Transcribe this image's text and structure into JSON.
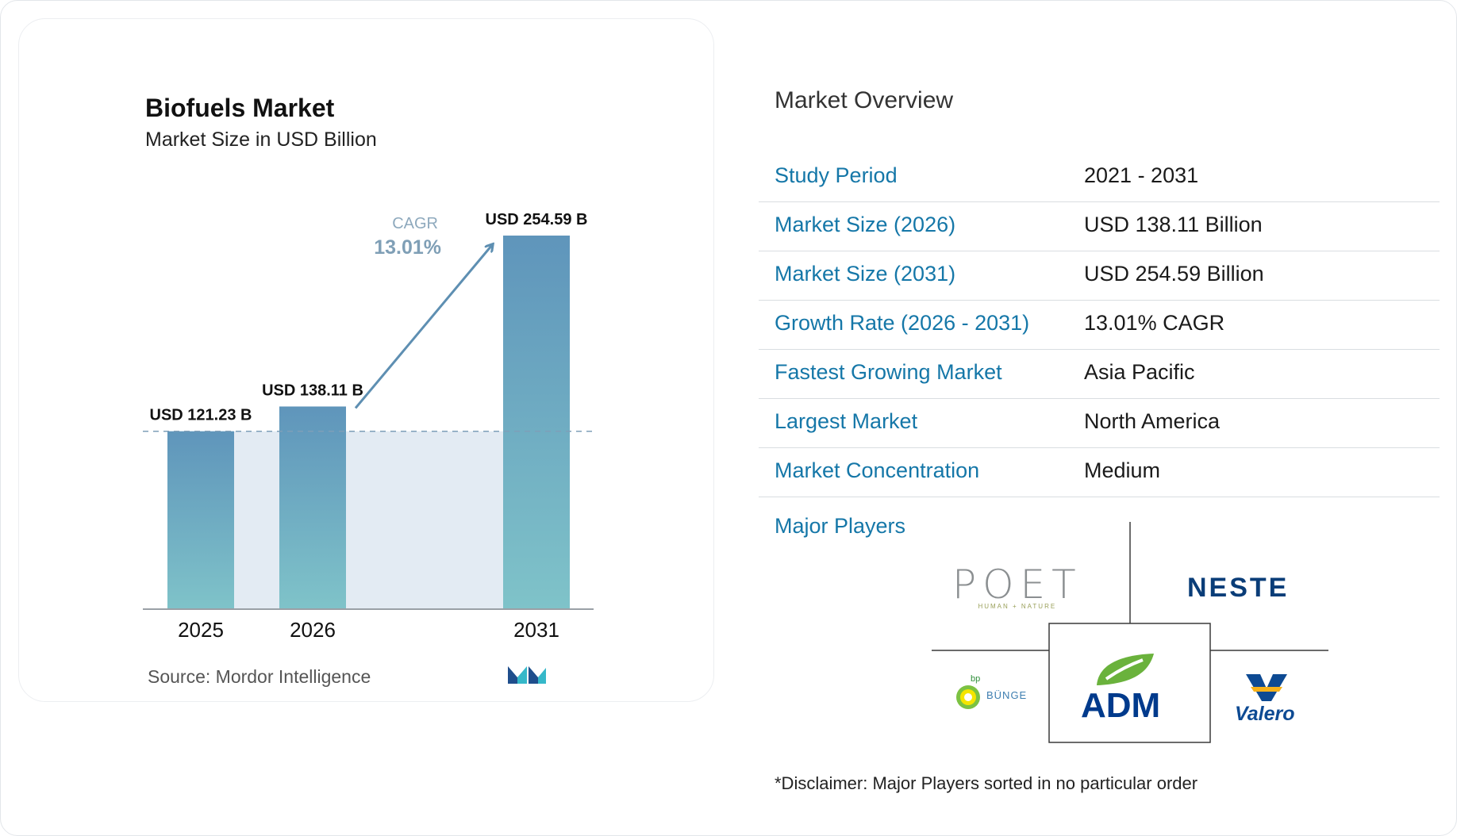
{
  "chart_data": {
    "type": "bar",
    "title": "Biofuels Market",
    "subtitle": "Market Size in USD Billion",
    "categories": [
      "2025",
      "2026",
      "2031"
    ],
    "values": [
      121.23,
      138.11,
      254.59
    ],
    "data_labels": [
      "USD 121.23 B",
      "USD 138.11 B",
      "USD 254.59 B"
    ],
    "cagr_label": "CAGR",
    "cagr_value": "13.01%",
    "ylim": [
      0,
      254.59
    ],
    "colors": {
      "bar_top": "#5f95bb",
      "bar_bottom": "#7fc3c9",
      "band": "#e3ebf3",
      "arrow": "#5e8fb2",
      "axis": "#9aa0a6"
    },
    "source": "Source: Mordor Intelligence"
  },
  "overview": {
    "title": "Market Overview",
    "rows": [
      {
        "label": "Study Period",
        "value": "2021 - 2031"
      },
      {
        "label": "Market Size (2026)",
        "value": "USD 138.11 Billion"
      },
      {
        "label": "Market Size (2031)",
        "value": "USD 254.59 Billion"
      },
      {
        "label": "Growth Rate (2026 - 2031)",
        "value": "13.01% CAGR"
      },
      {
        "label": "Fastest Growing Market",
        "value": "Asia Pacific"
      },
      {
        "label": "Largest Market",
        "value": "North America"
      },
      {
        "label": "Market Concentration",
        "value": "Medium"
      }
    ],
    "major_players_label": "Major Players",
    "players": {
      "poet": "POET",
      "poet_tagline": "HUMAN + NATURE",
      "neste": "NESTE",
      "bunge_bp": "bp",
      "bunge": "BÜNGE",
      "adm": "ADM",
      "valero": "Valero"
    },
    "disclaimer": "*Disclaimer: Major Players sorted in no particular order"
  }
}
